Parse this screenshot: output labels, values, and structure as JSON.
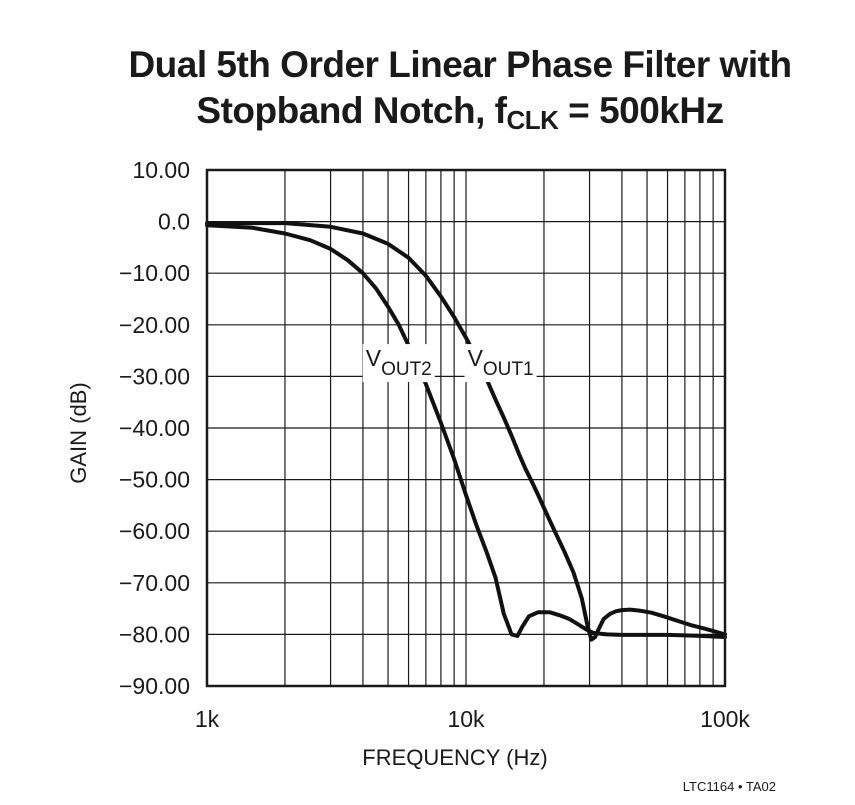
{
  "chart_data": {
    "type": "line",
    "title_line1": "Dual 5th Order Linear Phase Filter with",
    "title_line2_prefix": "Stopband Notch, f",
    "title_line2_sub": "CLK",
    "title_line2_suffix": " = 500kHz",
    "xlabel": "FREQUENCY (Hz)",
    "ylabel": "GAIN (dB)",
    "xscale": "log",
    "xlim": [
      1000,
      100000
    ],
    "ylim": [
      -90,
      10
    ],
    "grid": true,
    "x_ticks": [
      {
        "value": 1000,
        "label": "1k"
      },
      {
        "value": 10000,
        "label": "10k"
      },
      {
        "value": 100000,
        "label": "100k"
      }
    ],
    "y_ticks": [
      {
        "value": 10,
        "label": "10.00"
      },
      {
        "value": 0,
        "label": "0.0"
      },
      {
        "value": -10,
        "label": "−10.00"
      },
      {
        "value": -20,
        "label": "−20.00"
      },
      {
        "value": -30,
        "label": "−30.00"
      },
      {
        "value": -40,
        "label": "−40.00"
      },
      {
        "value": -50,
        "label": "−50.00"
      },
      {
        "value": -60,
        "label": "−60.00"
      },
      {
        "value": -70,
        "label": "−70.00"
      },
      {
        "value": -80,
        "label": "−80.00"
      },
      {
        "value": -90,
        "label": "−90.00"
      }
    ],
    "series": [
      {
        "name": "VOUT2",
        "label_main": "V",
        "label_sub": "OUT2",
        "label_at": {
          "x": 5500,
          "y": -28
        },
        "x": [
          1000,
          1500,
          2000,
          2500,
          3000,
          3500,
          4000,
          4500,
          5000,
          5500,
          6000,
          7000,
          8000,
          9000,
          10000,
          11000,
          12000,
          13000,
          14000,
          15000,
          15800,
          16500,
          17500,
          19000,
          21000,
          23000,
          25000,
          27000,
          29000,
          31000,
          32000,
          35000,
          40000,
          50000,
          60000,
          70000,
          80000,
          90000,
          100000
        ],
        "y": [
          -0.7,
          -1.2,
          -2.3,
          -3.6,
          -5.3,
          -7.5,
          -10.0,
          -13.0,
          -16.5,
          -20.0,
          -24.0,
          -31.5,
          -39.0,
          -46.0,
          -53.0,
          -59.0,
          -64.0,
          -69.0,
          -76.0,
          -80.0,
          -80.3,
          -78.5,
          -76.5,
          -75.7,
          -75.7,
          -76.3,
          -77.0,
          -78.0,
          -79.0,
          -79.7,
          -79.8,
          -80.0,
          -80.1,
          -80.1,
          -80.1,
          -80.2,
          -80.3,
          -80.4,
          -80.5
        ]
      },
      {
        "name": "VOUT1",
        "label_main": "V",
        "label_sub": "OUT1",
        "label_at": {
          "x": 13600,
          "y": -28
        },
        "x": [
          1000,
          2000,
          3000,
          4000,
          5000,
          6000,
          7000,
          8000,
          9000,
          10000,
          11000,
          12000,
          13000,
          14000,
          15000,
          16000,
          17000,
          18000,
          19000,
          20000,
          22000,
          24000,
          26000,
          28000,
          29500,
          30500,
          31500,
          32500,
          34000,
          36000,
          38000,
          40000,
          43000,
          47000,
          52000,
          58000,
          65000,
          75000,
          85000,
          100000
        ],
        "y": [
          -0.3,
          -0.3,
          -1.0,
          -2.3,
          -4.3,
          -7.0,
          -10.5,
          -14.5,
          -18.5,
          -22.5,
          -26.5,
          -30.5,
          -34.5,
          -38.0,
          -41.5,
          -45.0,
          -48.0,
          -50.5,
          -53.0,
          -55.5,
          -60.0,
          -64.0,
          -68.0,
          -73.0,
          -78.5,
          -81.0,
          -80.5,
          -79.0,
          -77.0,
          -76.0,
          -75.5,
          -75.3,
          -75.2,
          -75.4,
          -75.8,
          -76.5,
          -77.3,
          -78.3,
          -79.0,
          -80.0
        ]
      }
    ],
    "footer_code": "LTC1164 • TA02"
  }
}
